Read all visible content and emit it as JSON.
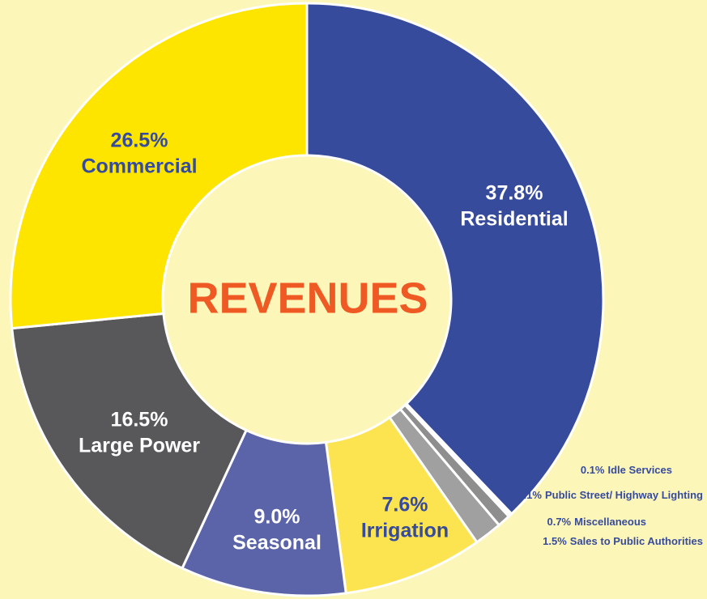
{
  "chart_data": {
    "type": "donut",
    "title": "REVENUES",
    "categories": [
      "Residential",
      "Idle Services",
      "Public Street/ Highway Lighting",
      "Miscellaneous",
      "Sales to Public Authorities",
      "Irrigation",
      "Seasonal",
      "Large Power",
      "Commercial"
    ],
    "values": [
      37.8,
      0.1,
      0.1,
      0.7,
      1.5,
      7.6,
      9.0,
      16.5,
      26.5
    ],
    "value_labels": [
      "37.8%",
      "0.1%",
      "0.1%",
      "0.7%",
      "1.5%",
      "7.6%",
      "9.0%",
      "16.5%",
      "26.5%"
    ],
    "colors": [
      "#374b9c",
      "#8a90cf",
      "#c3c6e8",
      "#8e8e8e",
      "#a0a0a0",
      "#fce451",
      "#5b63a9",
      "#58585a",
      "#fde500"
    ]
  }
}
